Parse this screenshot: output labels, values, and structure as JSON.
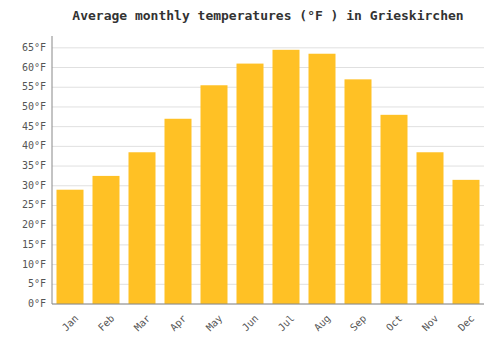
{
  "chart_data": {
    "type": "bar",
    "title": "Average monthly temperatures (°F ) in Grieskirchen",
    "categories": [
      "Jan",
      "Feb",
      "Mar",
      "Apr",
      "May",
      "Jun",
      "Jul",
      "Aug",
      "Sep",
      "Oct",
      "Nov",
      "Dec"
    ],
    "values": [
      29,
      32.5,
      38.5,
      47,
      55.5,
      61,
      64.5,
      63.5,
      57,
      48,
      38.5,
      31.5
    ],
    "color": "#FFC125",
    "ylim": [
      0,
      68
    ],
    "yticks": [
      {
        "value": 0,
        "label": "0°F"
      },
      {
        "value": 5,
        "label": "5°F"
      },
      {
        "value": 10,
        "label": "10°F"
      },
      {
        "value": 15,
        "label": "15°F"
      },
      {
        "value": 20,
        "label": "20°F"
      },
      {
        "value": 25,
        "label": "25°F"
      },
      {
        "value": 30,
        "label": "30°F"
      },
      {
        "value": 35,
        "label": "35°F"
      },
      {
        "value": 40,
        "label": "40°F"
      },
      {
        "value": 45,
        "label": "45°F"
      },
      {
        "value": 50,
        "label": "50°F"
      },
      {
        "value": 55,
        "label": "55°F"
      },
      {
        "value": 60,
        "label": "60°F"
      },
      {
        "value": 65,
        "label": "65°F"
      }
    ],
    "grid": true
  }
}
